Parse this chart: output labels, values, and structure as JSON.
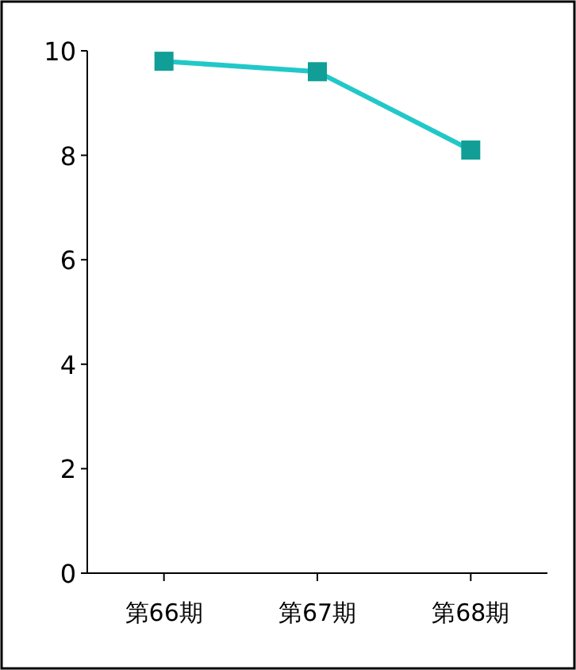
{
  "chart_data": {
    "type": "line",
    "categories": [
      "第66期",
      "第67期",
      "第68期"
    ],
    "series": [
      {
        "color": "#22c8c8",
        "colors": [
          "#109e96",
          "#109e96",
          "#109e96"
        ],
        "values": [
          9.8,
          9.6,
          8.1
        ]
      }
    ],
    "ylim": [
      0,
      10
    ],
    "yticks": [
      0,
      2,
      4,
      6,
      8,
      10
    ],
    "marker": "square",
    "line_style": "solid",
    "grid": false
  }
}
